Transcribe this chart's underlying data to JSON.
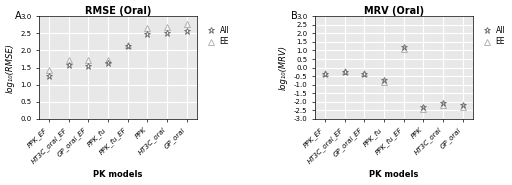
{
  "panel_A": {
    "title": "RMSE (Oral)",
    "ylabel": "log₁₀(RMSE)",
    "xlabel": "PK models",
    "panel_label": "A",
    "ylim": [
      0.0,
      3.0
    ],
    "yticks": [
      0.0,
      0.5,
      1.0,
      1.5,
      2.0,
      2.5,
      3.0
    ],
    "categories": [
      "PPK_EF",
      "HT3C_oral_EF",
      "GP_oral_EF",
      "PPK_fu",
      "PPK_fu_EF",
      "PPK",
      "HT3C_oral",
      "GP_oral"
    ],
    "cat_display": [
      "PPK_EF",
      "HT3C_oral_EF",
      "GP_oral_EF",
      "PPK_fu",
      "PPK_fu_EF",
      "PPK",
      "HT3C_oral",
      "GP_oral"
    ],
    "all_values": [
      1.25,
      1.57,
      1.55,
      1.63,
      2.13,
      2.49,
      2.5,
      2.57
    ],
    "ee_values": [
      1.42,
      1.72,
      1.72,
      1.72,
      2.15,
      2.65,
      2.7,
      2.78
    ]
  },
  "panel_B": {
    "title": "MRV (Oral)",
    "ylabel": "log₁₀(MRV)",
    "xlabel": "PK models",
    "panel_label": "B",
    "ylim": [
      -3.0,
      3.0
    ],
    "yticks": [
      -3.0,
      -2.5,
      -2.0,
      -1.5,
      -1.0,
      -0.5,
      0.0,
      0.5,
      1.0,
      1.5,
      2.0,
      2.5,
      3.0
    ],
    "categories": [
      "PPK_EF",
      "HT3C_oral_EF",
      "GP_oral_EF",
      "PPK_fu",
      "PPK_fu_EF",
      "PPK",
      "HT3C_oral",
      "GP_oral"
    ],
    "cat_display": [
      "PPK_EF",
      "HT3C_oral_EF",
      "GP_oral_EF",
      "PPK_fu",
      "PPK_fu_EF",
      "PPK",
      "HT3C_oral",
      "GP_oral"
    ],
    "all_values": [
      -0.35,
      -0.25,
      -0.35,
      -0.75,
      1.2,
      -2.3,
      -2.1,
      -2.2
    ],
    "ee_values": [
      -0.3,
      -0.22,
      -0.3,
      -0.85,
      1.1,
      -2.4,
      -2.2,
      -2.3
    ]
  },
  "marker_all": "*",
  "marker_ee": "^",
  "markersize_all": 5,
  "markersize_ee": 5,
  "color_all": "#666666",
  "color_ee": "#aaaaaa",
  "mfc_all": "none",
  "mfc_ee": "none",
  "bg_color": "#e8e8e8",
  "grid_color": "white",
  "tick_label_fontsize": 5.0,
  "axis_label_fontsize": 6.0,
  "title_fontsize": 7.0,
  "panel_label_fontsize": 7.0,
  "legend_fontsize": 5.5
}
